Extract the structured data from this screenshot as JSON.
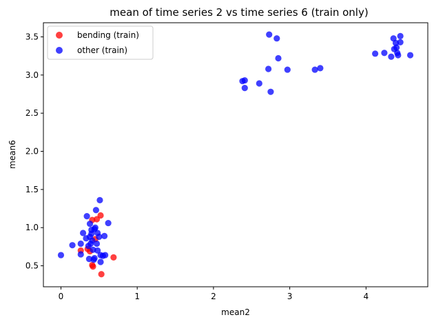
{
  "chart_data": {
    "type": "scatter",
    "title": "mean of time series 2 vs time series 6 (train only)",
    "xlabel": "mean2",
    "ylabel": "mean6",
    "xlim": [
      -0.23,
      4.81
    ],
    "ylim": [
      0.225,
      3.685
    ],
    "xticks": [
      0,
      1,
      2,
      3,
      4
    ],
    "yticks": [
      0.5,
      1.0,
      1.5,
      2.0,
      2.5,
      3.0,
      3.5
    ],
    "xtick_labels": [
      "0",
      "1",
      "2",
      "3",
      "4"
    ],
    "ytick_labels": [
      "0.5",
      "1.0",
      "1.5",
      "2.0",
      "2.5",
      "3.0",
      "3.5"
    ],
    "grid": false,
    "legend_position": "top-left",
    "series": [
      {
        "name": "bending (train)",
        "color": "#ff0000",
        "points": [
          [
            0.26,
            0.7
          ],
          [
            0.41,
            1.1
          ],
          [
            0.47,
            1.11
          ],
          [
            0.52,
            1.16
          ],
          [
            0.38,
            0.69
          ],
          [
            0.41,
            0.51
          ],
          [
            0.42,
            0.49
          ],
          [
            0.53,
            0.39
          ],
          [
            0.69,
            0.61
          ],
          [
            0.45,
            0.85
          ],
          [
            0.35,
            0.72
          ]
        ]
      },
      {
        "name": "other (train)",
        "color": "#0000ff",
        "points": [
          [
            0.0,
            0.64
          ],
          [
            0.15,
            0.77
          ],
          [
            0.26,
            0.65
          ],
          [
            0.26,
            0.79
          ],
          [
            0.29,
            0.93
          ],
          [
            0.33,
            0.86
          ],
          [
            0.34,
            1.15
          ],
          [
            0.36,
            0.76
          ],
          [
            0.37,
            0.59
          ],
          [
            0.38,
            1.05
          ],
          [
            0.4,
            0.97
          ],
          [
            0.4,
            0.92
          ],
          [
            0.41,
            0.83
          ],
          [
            0.42,
            0.71
          ],
          [
            0.43,
            0.58
          ],
          [
            0.44,
            0.98
          ],
          [
            0.45,
            1.0
          ],
          [
            0.46,
            1.23
          ],
          [
            0.47,
            0.79
          ],
          [
            0.48,
            0.7
          ],
          [
            0.5,
            0.88
          ],
          [
            0.51,
            1.36
          ],
          [
            0.52,
            0.64
          ],
          [
            0.52,
            0.55
          ],
          [
            0.57,
            0.89
          ],
          [
            0.58,
            0.64
          ],
          [
            0.62,
            1.06
          ],
          [
            0.38,
            0.88
          ],
          [
            0.55,
            0.63
          ],
          [
            0.44,
            0.6
          ],
          [
            0.39,
            0.79
          ],
          [
            0.48,
            0.93
          ],
          [
            2.38,
            2.92
          ],
          [
            2.41,
            2.93
          ],
          [
            2.41,
            2.83
          ],
          [
            2.6,
            2.89
          ],
          [
            2.72,
            3.08
          ],
          [
            2.73,
            3.53
          ],
          [
            2.75,
            2.78
          ],
          [
            2.83,
            3.48
          ],
          [
            2.85,
            3.22
          ],
          [
            2.97,
            3.07
          ],
          [
            3.33,
            3.07
          ],
          [
            3.4,
            3.09
          ],
          [
            4.12,
            3.28
          ],
          [
            4.24,
            3.29
          ],
          [
            4.33,
            3.24
          ],
          [
            4.36,
            3.48
          ],
          [
            4.37,
            3.34
          ],
          [
            4.39,
            3.42
          ],
          [
            4.4,
            3.36
          ],
          [
            4.41,
            3.29
          ],
          [
            4.42,
            3.26
          ],
          [
            4.45,
            3.51
          ],
          [
            4.45,
            3.43
          ],
          [
            4.58,
            3.26
          ]
        ]
      }
    ]
  }
}
